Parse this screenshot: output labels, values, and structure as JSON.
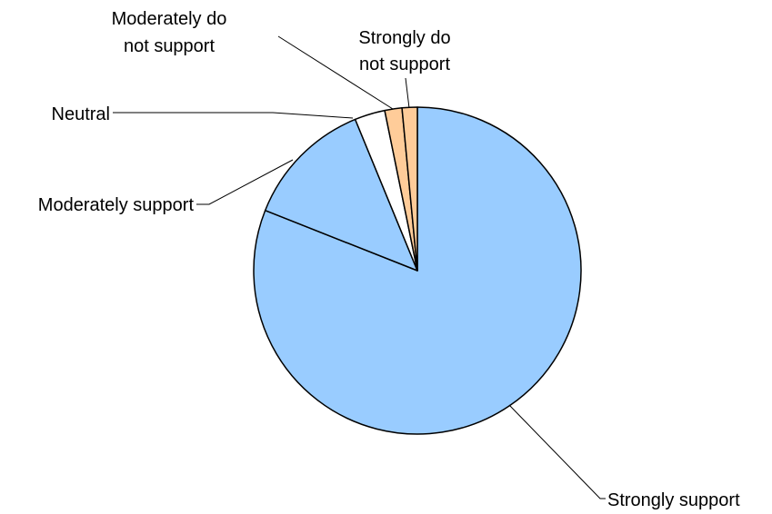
{
  "chart_data": {
    "type": "pie",
    "title": "",
    "start_angle_deg": 0,
    "direction": "clockwise",
    "colors": {
      "Strongly support": "#99ccff",
      "Moderately support": "#99ccff",
      "Neutral": "#ffffff",
      "Moderately do not support": "#ffcc99",
      "Strongly do not support": "#ffcc99",
      "outline": "#000000"
    },
    "slices": [
      {
        "label": "Strongly support",
        "value": 81.0
      },
      {
        "label": "Moderately support",
        "value": 12.8
      },
      {
        "label": "Neutral",
        "value": 3.0
      },
      {
        "label": "Moderately do not support",
        "value": 1.7
      },
      {
        "label": "Strongly do not support",
        "value": 1.5
      }
    ],
    "legend": "none"
  }
}
